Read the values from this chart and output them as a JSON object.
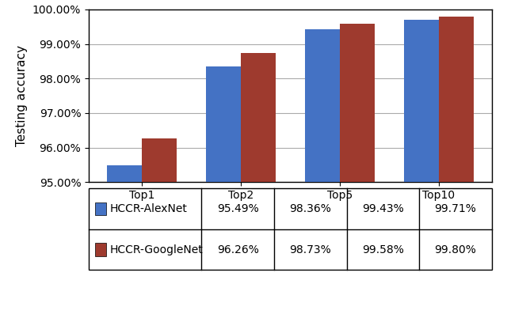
{
  "categories": [
    "Top1",
    "Top2",
    "Top5",
    "Top10"
  ],
  "alexnet_values": [
    95.49,
    98.36,
    99.43,
    99.71
  ],
  "googlenet_values": [
    96.26,
    98.73,
    99.58,
    99.8
  ],
  "alexnet_label": "HCCR-AlexNet",
  "googlenet_label": "HCCR-GoogleNet",
  "alexnet_color": "#4472C4",
  "googlenet_color": "#9E3A2E",
  "ylabel": "Testing accuracy",
  "ylim_min": 95.0,
  "ylim_max": 100.0,
  "yticks": [
    95.0,
    96.0,
    97.0,
    98.0,
    99.0,
    100.0
  ],
  "ytick_labels": [
    "95.00%",
    "96.00%",
    "97.00%",
    "98.00%",
    "99.00%",
    "100.00%"
  ],
  "legend_values_alexnet": [
    "95.49%",
    "98.36%",
    "99.43%",
    "99.71%"
  ],
  "legend_values_googlenet": [
    "96.26%",
    "98.73%",
    "99.58%",
    "99.80%"
  ],
  "bar_width": 0.35,
  "background_color": "#FFFFFF",
  "plot_bg_color": "#FFFFFF",
  "grid_color": "#AAAAAA",
  "border_color": "#000000",
  "font_size_axis": 11,
  "font_size_legend": 10,
  "font_size_ticks": 10
}
